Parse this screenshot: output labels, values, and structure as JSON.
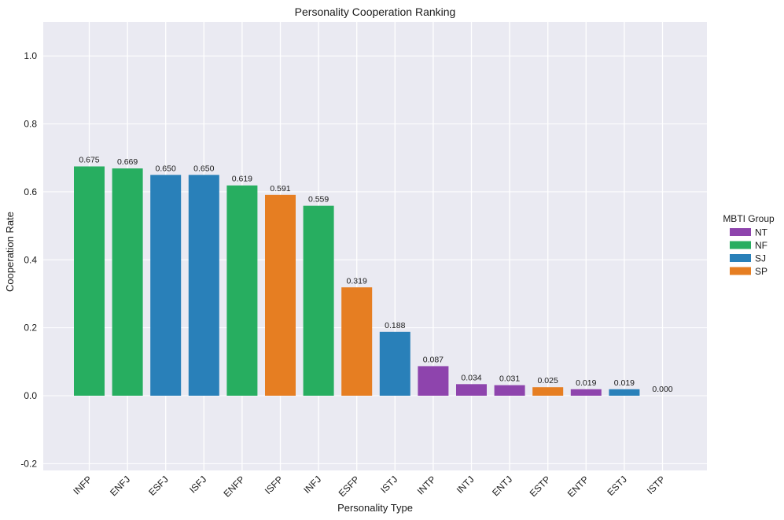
{
  "chart_data": {
    "type": "bar",
    "title": "Personality Cooperation Ranking",
    "xlabel": "Personality Type",
    "ylabel": "Cooperation Rate",
    "ylim": [
      -0.22,
      1.1
    ],
    "yticks": [
      -0.2,
      0.0,
      0.2,
      0.4,
      0.6,
      0.8,
      1.0
    ],
    "grid": true,
    "categories": [
      "INFP",
      "ENFJ",
      "ESFJ",
      "ISFJ",
      "ENFP",
      "ISFP",
      "INFJ",
      "ESFP",
      "ISTJ",
      "INTP",
      "INTJ",
      "ENTJ",
      "ESTP",
      "ENTP",
      "ESTJ",
      "ISTP"
    ],
    "values": [
      0.675,
      0.669,
      0.65,
      0.65,
      0.619,
      0.591,
      0.559,
      0.319,
      0.188,
      0.087,
      0.034,
      0.031,
      0.025,
      0.019,
      0.019,
      0.0
    ],
    "value_labels": [
      "0.675",
      "0.669",
      "0.650",
      "0.650",
      "0.619",
      "0.591",
      "0.559",
      "0.319",
      "0.188",
      "0.087",
      "0.034",
      "0.031",
      "0.025",
      "0.019",
      "0.019",
      "0.000"
    ],
    "groups": [
      "NF",
      "NF",
      "SJ",
      "SJ",
      "NF",
      "SP",
      "NF",
      "SP",
      "SJ",
      "NT",
      "NT",
      "NT",
      "SP",
      "NT",
      "SJ",
      "SP"
    ],
    "legend": {
      "title": "MBTI Group",
      "placement": "right",
      "entries": [
        {
          "name": "NT",
          "color": "#8e44ad"
        },
        {
          "name": "NF",
          "color": "#27ae60"
        },
        {
          "name": "SJ",
          "color": "#2980b9"
        },
        {
          "name": "SP",
          "color": "#e67e22"
        }
      ]
    },
    "colors": {
      "plot_background": "#eaeaf2",
      "grid": "#ffffff"
    }
  }
}
